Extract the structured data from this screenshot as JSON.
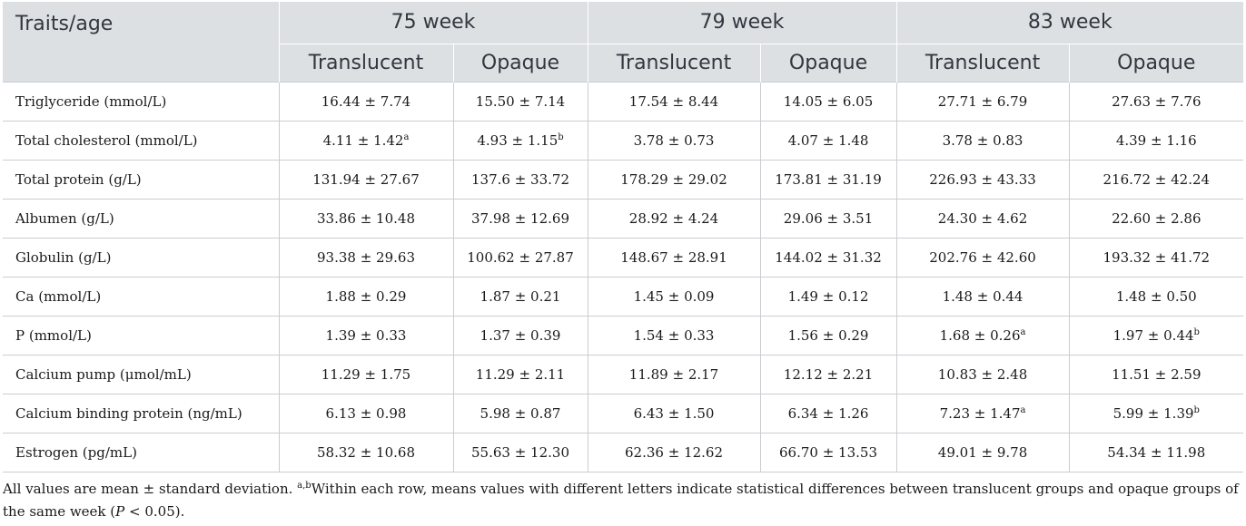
{
  "table": {
    "corner_header": "Traits/age",
    "weeks": [
      "75 week",
      "79 week",
      "83 week"
    ],
    "groups": [
      "Translucent",
      "Opaque",
      "Translucent",
      "Opaque",
      "Translucent",
      "Opaque"
    ],
    "rows": [
      {
        "trait": "Triglyceride (mmol/L)",
        "cells": [
          {
            "v": "16.44 ± 7.74",
            "s": ""
          },
          {
            "v": "15.50 ± 7.14",
            "s": ""
          },
          {
            "v": "17.54 ± 8.44",
            "s": ""
          },
          {
            "v": "14.05 ± 6.05",
            "s": ""
          },
          {
            "v": "27.71 ± 6.79",
            "s": ""
          },
          {
            "v": "27.63 ± 7.76",
            "s": ""
          }
        ]
      },
      {
        "trait": "Total cholesterol (mmol/L)",
        "cells": [
          {
            "v": "4.11 ± 1.42",
            "s": "a"
          },
          {
            "v": "4.93 ± 1.15",
            "s": "b"
          },
          {
            "v": "3.78 ± 0.73",
            "s": ""
          },
          {
            "v": "4.07 ± 1.48",
            "s": ""
          },
          {
            "v": "3.78 ± 0.83",
            "s": ""
          },
          {
            "v": "4.39 ± 1.16",
            "s": ""
          }
        ]
      },
      {
        "trait": "Total protein (g/L)",
        "cells": [
          {
            "v": "131.94 ± 27.67",
            "s": ""
          },
          {
            "v": "137.6 ± 33.72",
            "s": ""
          },
          {
            "v": "178.29 ± 29.02",
            "s": ""
          },
          {
            "v": "173.81 ± 31.19",
            "s": ""
          },
          {
            "v": "226.93 ± 43.33",
            "s": ""
          },
          {
            "v": "216.72 ± 42.24",
            "s": ""
          }
        ]
      },
      {
        "trait": "Albumen (g/L)",
        "cells": [
          {
            "v": "33.86 ± 10.48",
            "s": ""
          },
          {
            "v": "37.98 ± 12.69",
            "s": ""
          },
          {
            "v": "28.92 ± 4.24",
            "s": ""
          },
          {
            "v": "29.06 ± 3.51",
            "s": ""
          },
          {
            "v": "24.30 ± 4.62",
            "s": ""
          },
          {
            "v": "22.60 ± 2.86",
            "s": ""
          }
        ]
      },
      {
        "trait": "Globulin (g/L)",
        "cells": [
          {
            "v": "93.38 ± 29.63",
            "s": ""
          },
          {
            "v": "100.62 ± 27.87",
            "s": ""
          },
          {
            "v": "148.67 ± 28.91",
            "s": ""
          },
          {
            "v": "144.02 ± 31.32",
            "s": ""
          },
          {
            "v": "202.76 ± 42.60",
            "s": ""
          },
          {
            "v": "193.32 ± 41.72",
            "s": ""
          }
        ]
      },
      {
        "trait": "Ca (mmol/L)",
        "cells": [
          {
            "v": "1.88 ± 0.29",
            "s": ""
          },
          {
            "v": "1.87 ± 0.21",
            "s": ""
          },
          {
            "v": "1.45 ± 0.09",
            "s": ""
          },
          {
            "v": "1.49 ± 0.12",
            "s": ""
          },
          {
            "v": "1.48 ± 0.44",
            "s": ""
          },
          {
            "v": "1.48 ± 0.50",
            "s": ""
          }
        ]
      },
      {
        "trait": "P (mmol/L)",
        "cells": [
          {
            "v": "1.39 ± 0.33",
            "s": ""
          },
          {
            "v": "1.37 ± 0.39",
            "s": ""
          },
          {
            "v": "1.54 ± 0.33",
            "s": ""
          },
          {
            "v": "1.56 ± 0.29",
            "s": ""
          },
          {
            "v": "1.68 ± 0.26",
            "s": "a"
          },
          {
            "v": "1.97 ± 0.44",
            "s": "b"
          }
        ]
      },
      {
        "trait": "Calcium pump (μmol/mL)",
        "cells": [
          {
            "v": "11.29 ± 1.75",
            "s": ""
          },
          {
            "v": "11.29 ± 2.11",
            "s": ""
          },
          {
            "v": "11.89 ± 2.17",
            "s": ""
          },
          {
            "v": "12.12 ± 2.21",
            "s": ""
          },
          {
            "v": "10.83 ± 2.48",
            "s": ""
          },
          {
            "v": "11.51 ± 2.59",
            "s": ""
          }
        ]
      },
      {
        "trait": "Calcium binding protein (ng/mL)",
        "cells": [
          {
            "v": "6.13 ± 0.98",
            "s": ""
          },
          {
            "v": "5.98 ± 0.87",
            "s": ""
          },
          {
            "v": "6.43 ± 1.50",
            "s": ""
          },
          {
            "v": "6.34 ± 1.26",
            "s": ""
          },
          {
            "v": "7.23 ± 1.47",
            "s": "a"
          },
          {
            "v": "5.99 ± 1.39",
            "s": "b"
          }
        ]
      },
      {
        "trait": "Estrogen (pg/mL)",
        "cells": [
          {
            "v": "58.32 ± 10.68",
            "s": ""
          },
          {
            "v": "55.63 ± 12.30",
            "s": ""
          },
          {
            "v": "62.36 ± 12.62",
            "s": ""
          },
          {
            "v": "66.70 ± 13.53",
            "s": ""
          },
          {
            "v": "49.01 ± 9.78",
            "s": ""
          },
          {
            "v": "54.34 ± 11.98",
            "s": ""
          }
        ]
      }
    ]
  },
  "footnote": {
    "part1": "All values are mean ± standard deviation. ",
    "marks": "a,b",
    "part2": "Within each row, means values with different letters indicate statistical differences between translucent groups and opaque groups of the same week (",
    "p_symbol": "P",
    "part3": " < 0.05)."
  }
}
